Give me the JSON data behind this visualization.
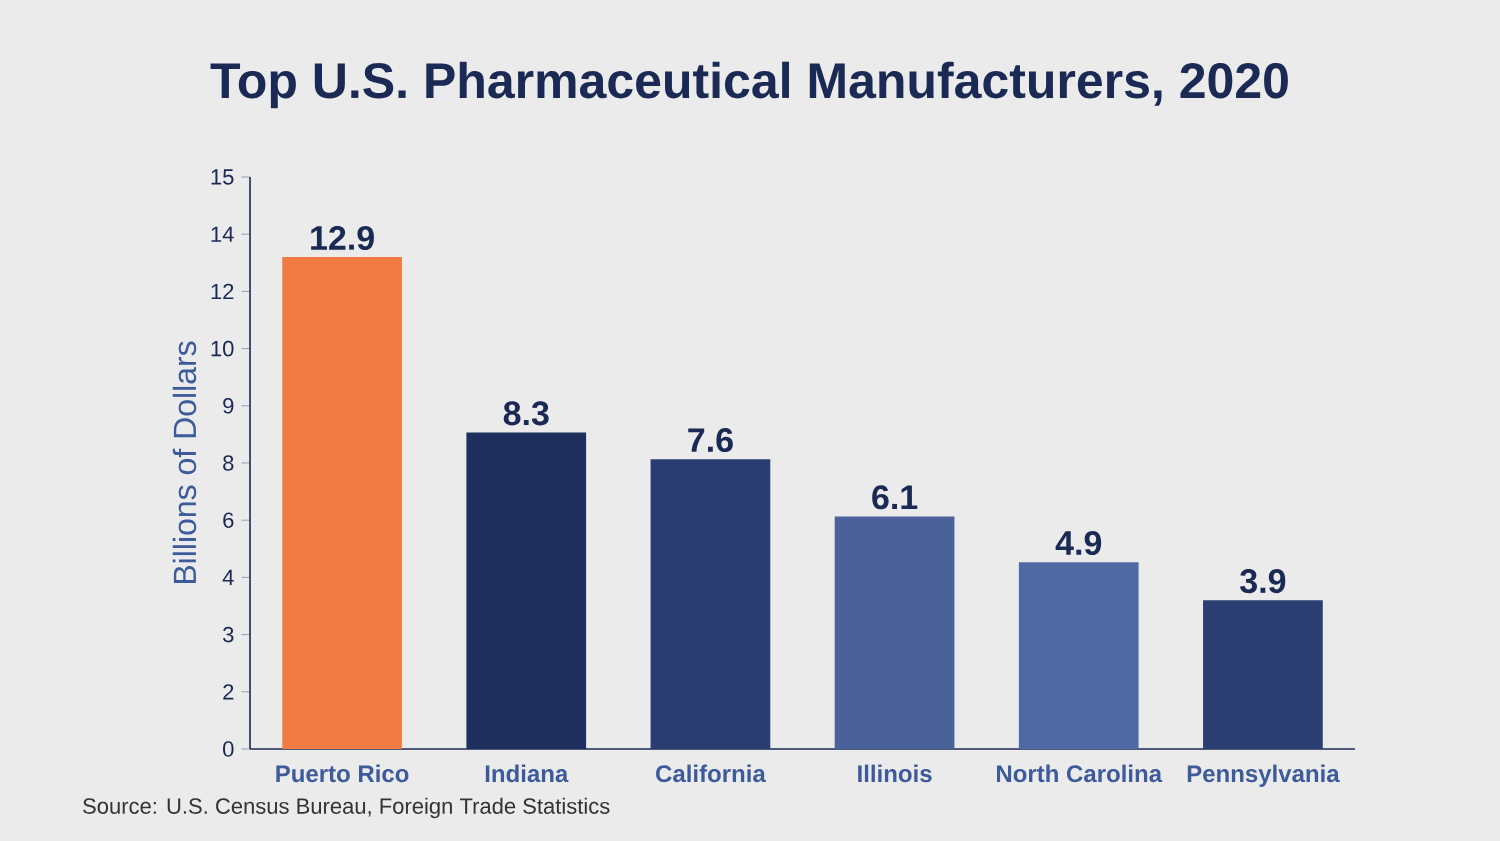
{
  "chart_data": {
    "type": "bar",
    "title": "Top U.S. Pharmaceutical Manufacturers, 2020",
    "ylabel": "Billions of Dollars",
    "categories": [
      "Puerto Rico",
      "Indiana",
      "California",
      "Illinois",
      "North Carolina",
      "Pennsylvania"
    ],
    "values": [
      12.9,
      8.3,
      7.6,
      6.1,
      4.9,
      3.9
    ],
    "colors": [
      "#f07b45",
      "#1f2f5e",
      "#2a3d70",
      "#4a619a",
      "#4f6aa3",
      "#2c3f72"
    ],
    "data_labels": true,
    "ylim": [
      0,
      15
    ],
    "yticks": [
      0,
      {
        "value": 1.5,
        "label": "2"
      },
      3,
      {
        "value": 4.5,
        "label": "4"
      },
      6,
      {
        "value": 7.5,
        "label": "8"
      },
      9,
      {
        "value": 10.5,
        "label": "10"
      },
      12,
      {
        "value": 13.5,
        "label": "14"
      },
      15
    ],
    "annotations": [
      "Source: U.S. Census Bureau, Foreign Trade Statistics"
    ]
  }
}
